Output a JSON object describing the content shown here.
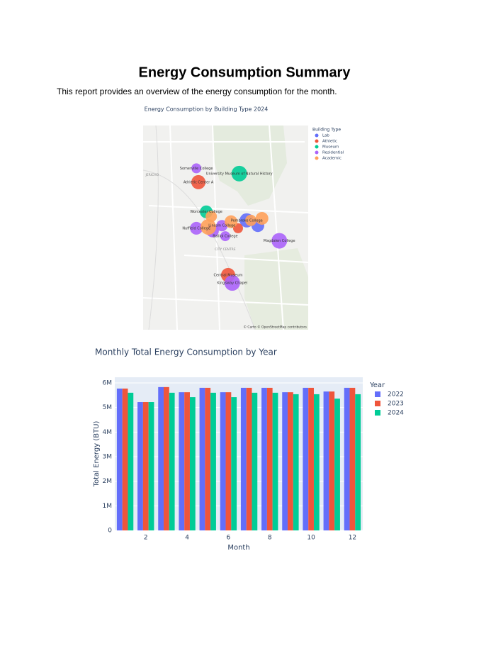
{
  "header": {
    "title": "Energy Consumption Summary",
    "intro": "This report provides an overview of the energy consumption for the month."
  },
  "chart_data": [
    {
      "type": "scattermap",
      "title": "Energy Consumption by Building Type 2024",
      "legend_title": "Building Type",
      "attribution": "© Carto © OpenStreetMap contributors",
      "lonlim": [
        -1.275,
        -1.235
      ],
      "latlim": [
        51.74,
        51.771
      ],
      "map_labels": [
        {
          "text": "JERICHO",
          "lat": 51.7635,
          "lon": -1.2728
        },
        {
          "text": "CITY CENTRE",
          "lat": 51.7522,
          "lon": -1.2551
        }
      ],
      "series": [
        {
          "name": "Lab",
          "color": "#636efa",
          "lat": [
            51.7566,
            51.7558
          ],
          "lon": [
            -1.2499,
            -1.2472
          ],
          "sizes": [
            20,
            18
          ],
          "labels": [
            "Pembroke College",
            null
          ]
        },
        {
          "name": "Athletic",
          "color": "#EF553B",
          "lat": [
            51.7624,
            51.7554,
            51.7483
          ],
          "lon": [
            -1.2616,
            -1.252,
            -1.2544
          ],
          "sizes": [
            20,
            14,
            20
          ],
          "labels": [
            "Athletic Center A",
            null,
            "Central Museum"
          ]
        },
        {
          "name": "Museum",
          "color": "#00cc96",
          "lat": [
            51.7637,
            51.7579
          ],
          "lon": [
            -1.2517,
            -1.2597
          ],
          "sizes": [
            22,
            18
          ],
          "labels": [
            "University Museum of Natural History",
            "Worcester College"
          ]
        },
        {
          "name": "Residential",
          "color": "#ab63fa",
          "lat": [
            51.7645,
            51.7554,
            51.755,
            51.7558,
            51.7542,
            51.7535,
            51.7471
          ],
          "lon": [
            -1.2621,
            -1.2621,
            -1.2582,
            -1.2559,
            -1.2551,
            -1.242,
            -1.2534
          ],
          "sizes": [
            14,
            18,
            18,
            16,
            14,
            22,
            22
          ],
          "labels": [
            "Somerville College",
            "Nuffield College",
            null,
            "Lincoln College",
            "Balliol College",
            "Magdalen College",
            "Kingsway Chapel"
          ]
        },
        {
          "name": "Academic",
          "color": "#FFA15A",
          "lat": [
            51.7572,
            51.7556,
            51.7564,
            51.7566,
            51.7569
          ],
          "lon": [
            -1.2585,
            -1.2592,
            -1.2537,
            -1.2489,
            -1.2462
          ],
          "sizes": [
            16,
            22,
            18,
            16,
            18
          ],
          "labels": [
            null,
            null,
            null,
            null,
            null
          ]
        }
      ]
    },
    {
      "type": "bar",
      "title": "Monthly Total Energy Consumption by Year",
      "xlabel": "Month",
      "ylabel": "Total Energy (BTU)",
      "legend_title": "Year",
      "x": [
        1,
        2,
        3,
        4,
        5,
        6,
        7,
        8,
        9,
        10,
        11,
        12
      ],
      "xlim": [
        0.5,
        12.5
      ],
      "xticks": [
        2,
        4,
        6,
        8,
        10,
        12
      ],
      "ylim": [
        0,
        6230000
      ],
      "yticks": [
        0,
        {
          "value": 1000000,
          "label": "1M"
        },
        {
          "value": 2000000,
          "label": "2M"
        },
        {
          "value": 3000000,
          "label": "3M"
        },
        {
          "value": 4000000,
          "label": "4M"
        },
        {
          "value": 5000000,
          "label": "5M"
        },
        {
          "value": 6000000,
          "label": "6M"
        }
      ],
      "grid": true,
      "series": [
        {
          "name": "2022",
          "color": "#636efa",
          "values": [
            5770000,
            5220000,
            5830000,
            5620000,
            5800000,
            5620000,
            5800000,
            5800000,
            5620000,
            5800000,
            5650000,
            5800000
          ]
        },
        {
          "name": "2023",
          "color": "#EF553B",
          "values": [
            5770000,
            5220000,
            5830000,
            5620000,
            5800000,
            5620000,
            5800000,
            5800000,
            5620000,
            5800000,
            5650000,
            5800000
          ]
        },
        {
          "name": "2024",
          "color": "#00cc96",
          "values": [
            5600000,
            5220000,
            5600000,
            5420000,
            5600000,
            5420000,
            5600000,
            5600000,
            5540000,
            5540000,
            5360000,
            5540000
          ]
        }
      ]
    }
  ]
}
